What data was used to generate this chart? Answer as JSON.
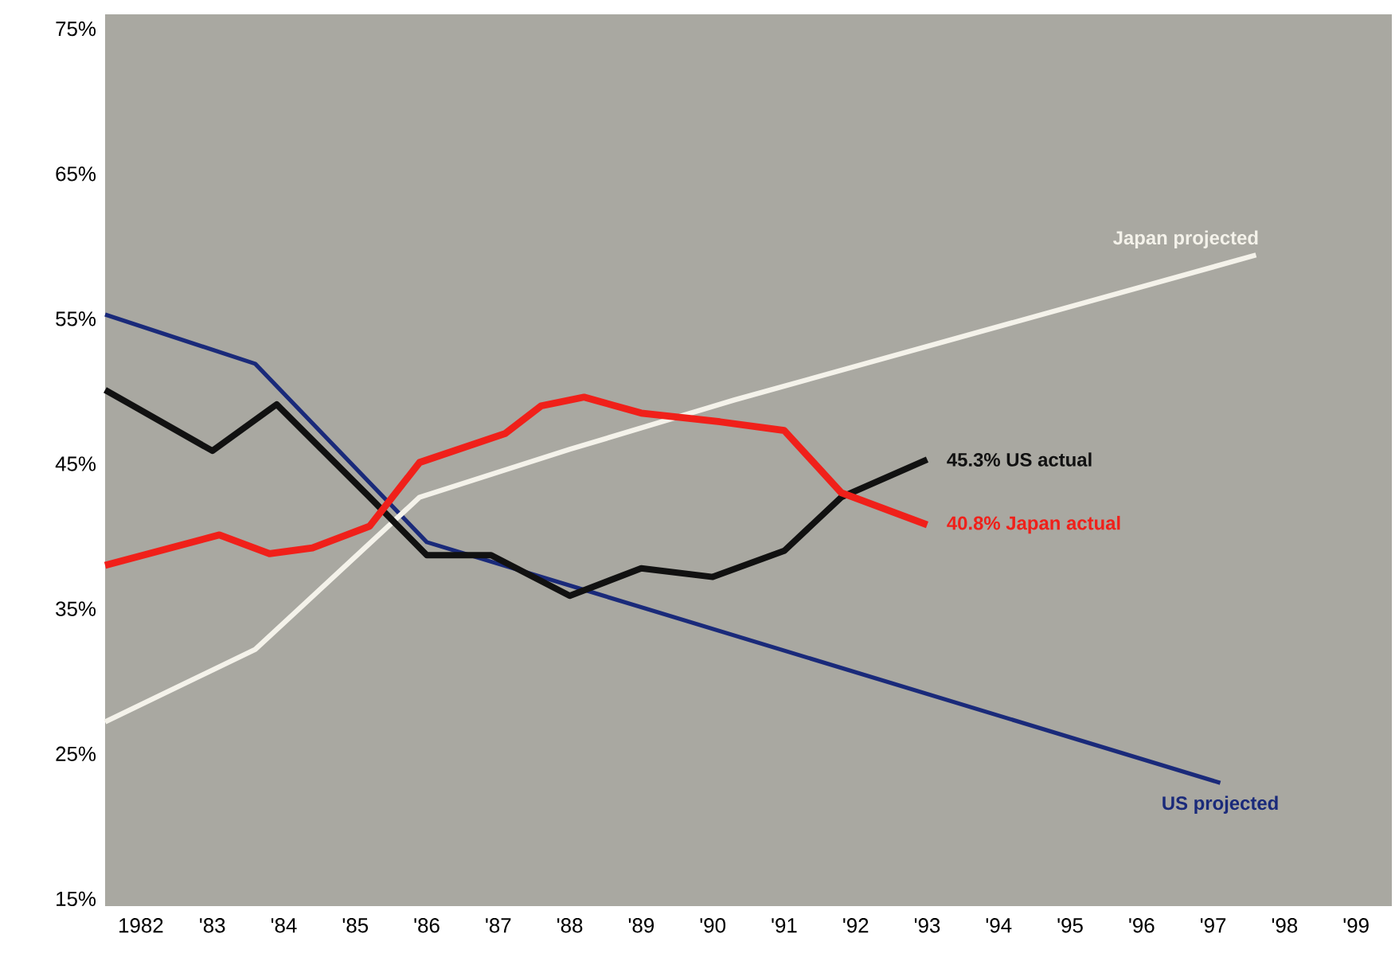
{
  "chart_data": {
    "type": "line",
    "xlim": [
      1981.5,
      1999.5
    ],
    "ylim": [
      14.5,
      76
    ],
    "xticks": [
      1982,
      {
        "value": 1983,
        "label": "'83"
      },
      {
        "value": 1984,
        "label": "'84"
      },
      {
        "value": 1985,
        "label": "'85"
      },
      {
        "value": 1986,
        "label": "'86"
      },
      {
        "value": 1987,
        "label": "'87"
      },
      {
        "value": 1988,
        "label": "'88"
      },
      {
        "value": 1989,
        "label": "'89"
      },
      {
        "value": 1990,
        "label": "'90"
      },
      {
        "value": 1991,
        "label": "'91"
      },
      {
        "value": 1992,
        "label": "'92"
      },
      {
        "value": 1993,
        "label": "'93"
      },
      {
        "value": 1994,
        "label": "'94"
      },
      {
        "value": 1995,
        "label": "'95"
      },
      {
        "value": 1996,
        "label": "'96"
      },
      {
        "value": 1997,
        "label": "'97"
      },
      {
        "value": 1998,
        "label": "'98"
      },
      {
        "value": 1999,
        "label": "'99"
      }
    ],
    "yticks": [
      {
        "value": 15,
        "label": "15%"
      },
      {
        "value": 25,
        "label": "25%"
      },
      {
        "value": 35,
        "label": "35%"
      },
      {
        "value": 45,
        "label": "45%"
      },
      {
        "value": 55,
        "label": "55%"
      },
      {
        "value": 65,
        "label": "65%"
      },
      {
        "value": 75,
        "label": "75%"
      }
    ],
    "series": [
      {
        "name": "US projected",
        "color": "#1a2a7a",
        "x": [
          1981.5,
          1983.6,
          1986.0,
          1997.1
        ],
        "values": [
          55.3,
          51.9,
          39.6,
          23.0
        ]
      },
      {
        "name": "Japan projected",
        "color": "#f4f2ea",
        "x": [
          1981.5,
          1983.6,
          1985.9,
          1988.0,
          1990.3,
          1997.6
        ],
        "values": [
          27.2,
          32.2,
          42.7,
          46.0,
          49.4,
          59.4
        ]
      },
      {
        "name": "45.3% US actual",
        "color": "#111111",
        "x": [
          1981.5,
          1983.0,
          1983.9,
          1985.2,
          1986.0,
          1986.9,
          1988.0,
          1989.0,
          1990.0,
          1991.0,
          1991.8,
          1993.0
        ],
        "values": [
          50.1,
          45.9,
          49.1,
          42.7,
          38.7,
          38.7,
          35.9,
          37.8,
          37.2,
          39.0,
          42.7,
          45.3
        ]
      },
      {
        "name": "40.8% Japan actual",
        "color": "#f0201a",
        "x": [
          1981.5,
          1983.1,
          1983.8,
          1984.4,
          1985.2,
          1985.9,
          1987.1,
          1987.6,
          1988.2,
          1989.0,
          1990.1,
          1991.0,
          1991.8,
          1993.0
        ],
        "values": [
          38.0,
          40.1,
          38.8,
          39.2,
          40.7,
          45.1,
          47.1,
          49.0,
          49.6,
          48.5,
          47.9,
          47.3,
          43.0,
          40.8
        ]
      }
    ]
  }
}
